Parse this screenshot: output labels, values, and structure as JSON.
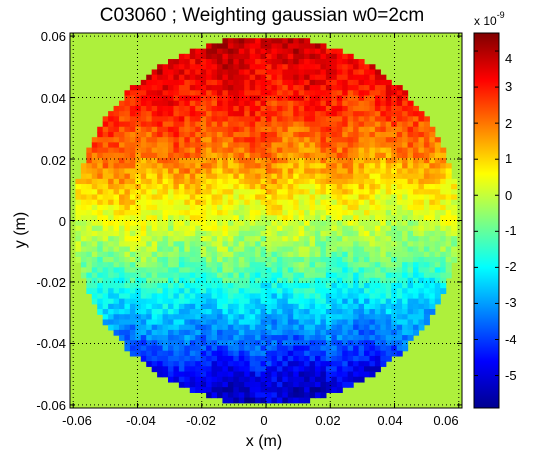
{
  "chart_data": {
    "type": "heatmap",
    "title": "C03060 ; Weighting gaussian w0=2cm",
    "xlabel": "x (m)",
    "ylabel": "y (m)",
    "xlim": [
      -0.061,
      0.061
    ],
    "ylim": [
      -0.061,
      0.061
    ],
    "x_ticks": [
      -0.06,
      -0.04,
      -0.02,
      0,
      0.02,
      0.04,
      0.06
    ],
    "x_tick_labels": [
      "-0.06",
      "-0.04",
      "-0.02",
      "0",
      "0.02",
      "0.04",
      "0.06"
    ],
    "y_ticks": [
      0.06,
      0.04,
      0.02,
      0,
      -0.02,
      -0.04,
      -0.06
    ],
    "y_tick_labels": [
      "0.06",
      "0.04",
      "0.02",
      "0",
      "-0.02",
      "-0.04",
      "-0.06"
    ],
    "grid": true,
    "colormap": "jet",
    "aperture_radius_m": 0.06,
    "background_value": 0,
    "colorbar": {
      "range": [
        -5.9e-09,
        4.5e-09
      ],
      "ticks": [
        4,
        3,
        2,
        1,
        0,
        -1,
        -2,
        -3,
        -4,
        -5
      ],
      "tick_labels": [
        "4",
        "3",
        "2",
        "1",
        "0",
        "-1",
        "-2",
        "-3",
        "-4",
        "-5"
      ],
      "multiplier_base": "x 10",
      "multiplier_exponent": "-9",
      "clim": [
        -5.9,
        4.5
      ]
    },
    "profile_y_m": [
      0.06,
      0.04,
      0.02,
      0.01,
      0,
      -0.01,
      -0.02,
      -0.03,
      -0.04,
      -0.05,
      -0.06
    ],
    "profile_value_e9": [
      3.8,
      3.0,
      1.8,
      0.9,
      0.2,
      -0.6,
      -1.6,
      -2.6,
      -3.6,
      -4.8,
      -5.2
    ],
    "profile_x_slope_e9_per_m": -12
  }
}
